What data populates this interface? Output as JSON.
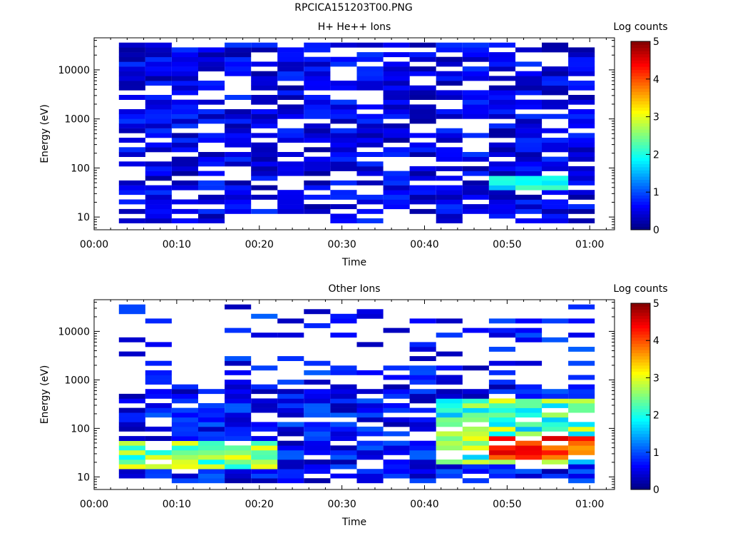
{
  "page_title": "RPCICA151203T00.PNG",
  "chart_data": [
    {
      "type": "heatmap",
      "title": "H+ He++ Ions",
      "xlabel": "Time",
      "ylabel": "Energy (eV)",
      "xticks": [
        "00:00",
        "00:10",
        "00:20",
        "00:30",
        "00:40",
        "00:50",
        "01:00"
      ],
      "xlim_minutes": [
        0,
        63
      ],
      "yscale": "log",
      "ylim": [
        5.5,
        45000
      ],
      "ytick_values": [
        10,
        100,
        1000,
        10000
      ],
      "ytick_labels": [
        "10",
        "100",
        "1000",
        "10000"
      ],
      "colorbar": {
        "label": "Log counts",
        "range": [
          0,
          5
        ],
        "ticks": [
          "0",
          "1",
          "2",
          "3",
          "4",
          "5"
        ]
      },
      "time_bins_minutes": [
        3,
        6.2,
        9.4,
        12.6,
        15.8,
        19,
        22.2,
        25.4,
        28.6,
        31.8,
        35,
        38.2,
        41.4,
        44.6,
        47.8,
        51,
        54.2,
        57.4,
        60.6
      ],
      "energy_bins_eV": [
        7.5,
        9.4,
        11.7,
        14.6,
        18.3,
        22.8,
        28.5,
        35.6,
        44.5,
        55.6,
        69.5,
        86.9,
        108.6,
        135.7,
        169.6,
        212,
        265,
        331,
        414,
        517,
        647,
        808,
        1010,
        1263,
        1579,
        1973,
        2467,
        3083,
        3854,
        4818,
        6022,
        7528,
        9410,
        11763,
        14703,
        18379,
        22974,
        28717,
        35896
      ],
      "peak_log_counts": 2.3,
      "notes_on_values": "Sparse ~0.3-1 log counts across all energies; enhanced 1.5-2.3 near 40-60 eV at 00:48-00:57"
    },
    {
      "type": "heatmap",
      "title": "Other Ions",
      "xlabel": "Time",
      "ylabel": "Energy (eV)",
      "xticks": [
        "00:00",
        "00:10",
        "00:20",
        "00:30",
        "00:40",
        "00:50",
        "01:00"
      ],
      "xlim_minutes": [
        0,
        63
      ],
      "yscale": "log",
      "ylim": [
        5.5,
        45000
      ],
      "ytick_values": [
        10,
        100,
        1000,
        10000
      ],
      "ytick_labels": [
        "10",
        "100",
        "1000",
        "10000"
      ],
      "colorbar": {
        "label": "Log counts",
        "range": [
          0,
          5
        ],
        "ticks": [
          "0",
          "1",
          "2",
          "3",
          "4",
          "5"
        ]
      },
      "time_bins_minutes": [
        3,
        6.2,
        9.4,
        12.6,
        15.8,
        19,
        22.2,
        25.4,
        28.6,
        31.8,
        35,
        38.2,
        41.4,
        44.6,
        47.8,
        51,
        54.2,
        57.4,
        60.6
      ],
      "energy_bins_eV": [
        7.5,
        9.4,
        11.7,
        14.6,
        18.3,
        22.8,
        28.5,
        35.6,
        44.5,
        55.6,
        69.5,
        86.9,
        108.6,
        135.7,
        169.6,
        212,
        265,
        331,
        414,
        517,
        647,
        808,
        1010,
        1263,
        1579,
        1973,
        2467,
        3083,
        3854,
        4818,
        6022,
        7528,
        9410,
        11763,
        14703,
        18379,
        22974,
        28717,
        35896
      ],
      "peak_log_counts": 4.6,
      "notes_on_values": "Main population 15-500 eV; hot spot 4-4.6 log counts near 30-60 eV at 00:48-00:57; secondary ~3 at 15-40 eV near 00:05-00:20"
    }
  ]
}
